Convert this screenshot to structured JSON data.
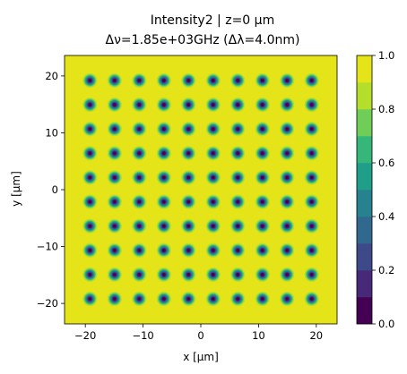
{
  "chart_data": {
    "type": "heatmap",
    "title_line1": "Intensity2 | z=0 μm",
    "title_line2": "Δν=1.85e+03GHz (Δλ=4.0nm)",
    "xlabel": "x [μm]",
    "ylabel": "y [μm]",
    "xlim": [
      -23.6,
      23.6
    ],
    "ylim": [
      -23.6,
      23.6
    ],
    "xticks": [
      -20,
      -10,
      0,
      10,
      20
    ],
    "xtick_labels": [
      "−20",
      "−10",
      "0",
      "10",
      "20"
    ],
    "yticks": [
      -20,
      -10,
      0,
      10,
      20
    ],
    "ytick_labels": [
      "−20",
      "−10",
      "0",
      "10",
      "20"
    ],
    "grid": false,
    "spot_grid": {
      "count_x": 10,
      "count_y": 10,
      "first_center": -19.2,
      "pitch": 4.267,
      "min_value": 0.0,
      "background_value": 0.95
    },
    "colorbar": {
      "min": 0.0,
      "max": 1.0,
      "levels": 10,
      "ticks": [
        0.0,
        0.2,
        0.4,
        0.6,
        0.8,
        1.0
      ],
      "tick_labels": [
        "0.0",
        "0.2",
        "0.4",
        "0.6",
        "0.8",
        "1.0"
      ],
      "colors": [
        "#440154",
        "#482878",
        "#3e4989",
        "#31688e",
        "#26828e",
        "#1f9e89",
        "#35b779",
        "#6ece58",
        "#b5de2b",
        "#e4e419"
      ]
    }
  }
}
